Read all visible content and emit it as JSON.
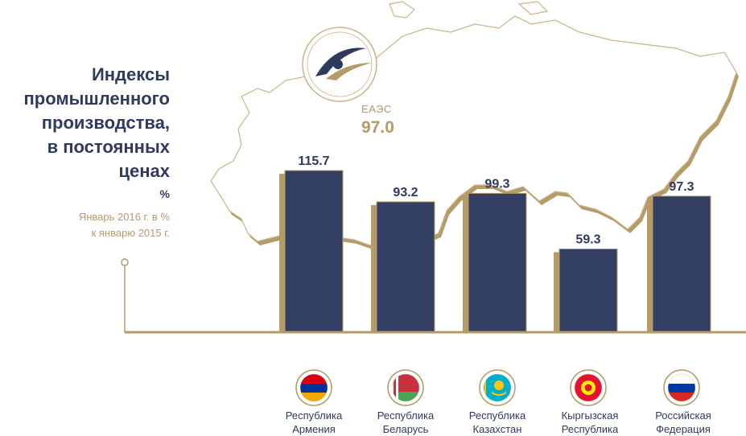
{
  "title": [
    "Индексы",
    "промышленного",
    "производства,",
    "в постоянных",
    "ценах"
  ],
  "unit": "%",
  "subtitle": [
    "Январь 2016 г. в %",
    "к январю 2015 г."
  ],
  "eaeu": {
    "label": "ЕАЭС",
    "value": "97.0"
  },
  "colors": {
    "bar": "#333f62",
    "bar_edge": "#b49b67",
    "gold": "#b49b67",
    "text": "#2f3a5f",
    "map_fill": "#ffffff"
  },
  "chart_data": {
    "type": "bar",
    "categories": [
      "Республика Армения",
      "Республика Беларусь",
      "Республика Казахстан",
      "Кыргызская Республика",
      "Российская Федерация"
    ],
    "values": [
      115.7,
      93.2,
      99.3,
      59.3,
      97.3
    ],
    "value_labels": [
      "115.7",
      "93.2",
      "99.3",
      "59.3",
      "97.3"
    ],
    "ylim": [
      0,
      120
    ],
    "grid": false,
    "legend": "none",
    "title": "Индексы промышленного производства, в постоянных ценах",
    "ylabel": "%"
  },
  "countries": [
    {
      "line1": "Республика",
      "line2": "Армения",
      "flag": "armenia-flag"
    },
    {
      "line1": "Республика",
      "line2": "Беларусь",
      "flag": "belarus-flag"
    },
    {
      "line1": "Республика",
      "line2": "Казахстан",
      "flag": "kazakhstan-flag"
    },
    {
      "line1": "Кыргызская",
      "line2": "Республика",
      "flag": "kyrgyzstan-flag"
    },
    {
      "line1": "Российская",
      "line2": "Федерация",
      "flag": "russia-flag"
    }
  ]
}
